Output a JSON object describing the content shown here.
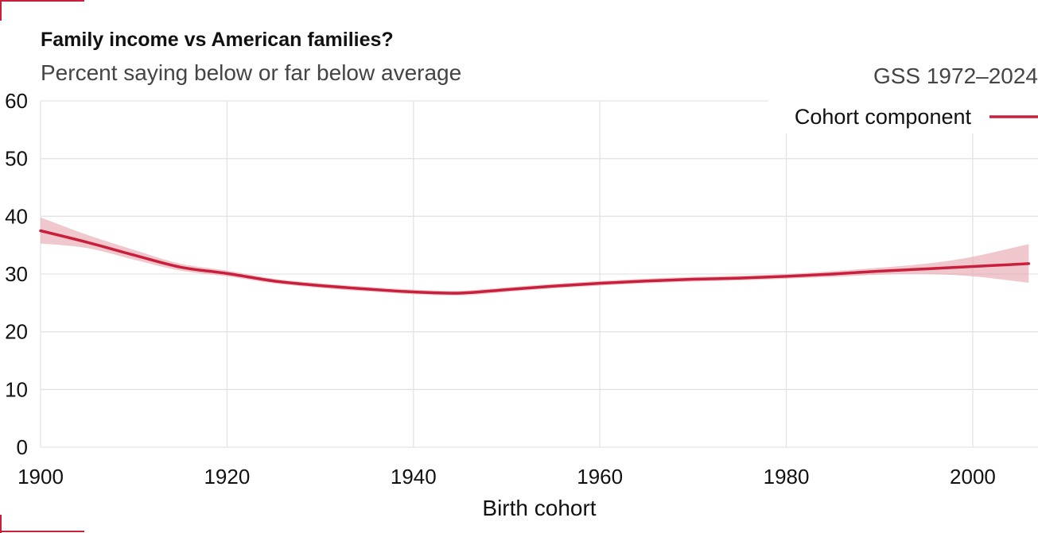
{
  "colors": {
    "accent": "#c8203c",
    "band": "#e6a1ac"
  },
  "chart_data": {
    "type": "line",
    "title": "Family income vs American families?",
    "subtitle": "Percent saying below or far below average",
    "source": "GSS 1972–2024",
    "xlabel": "Birth cohort",
    "ylabel": "",
    "xlim": [
      1900,
      2007
    ],
    "ylim": [
      0,
      60
    ],
    "x_ticks": [
      1900,
      1920,
      1940,
      1960,
      1980,
      2000
    ],
    "y_ticks": [
      0,
      10,
      20,
      30,
      40,
      50,
      60
    ],
    "grid": true,
    "legend_position": "top-right",
    "series": [
      {
        "name": "Cohort component",
        "color": "#c8203c",
        "x": [
          1900,
          1905,
          1910,
          1915,
          1920,
          1925,
          1930,
          1935,
          1940,
          1945,
          1950,
          1955,
          1960,
          1965,
          1970,
          1975,
          1980,
          1985,
          1990,
          1995,
          2000,
          2006
        ],
        "y": [
          37.5,
          35.5,
          33.3,
          31.2,
          30.1,
          28.8,
          28.0,
          27.4,
          26.9,
          26.7,
          27.3,
          27.9,
          28.4,
          28.8,
          29.1,
          29.3,
          29.6,
          30.0,
          30.5,
          30.9,
          31.3,
          31.8
        ],
        "ci_lower": [
          35.3,
          34.5,
          32.5,
          30.6,
          29.6,
          28.4,
          27.6,
          27.0,
          26.5,
          26.3,
          26.9,
          27.5,
          28.0,
          28.4,
          28.7,
          28.9,
          29.2,
          29.5,
          29.9,
          30.0,
          29.6,
          28.5
        ],
        "ci_upper": [
          39.8,
          36.8,
          34.2,
          31.8,
          30.6,
          29.2,
          28.4,
          27.8,
          27.3,
          27.1,
          27.7,
          28.3,
          28.8,
          29.2,
          29.5,
          29.7,
          30.0,
          30.5,
          31.1,
          31.8,
          33.0,
          35.2
        ]
      }
    ]
  }
}
